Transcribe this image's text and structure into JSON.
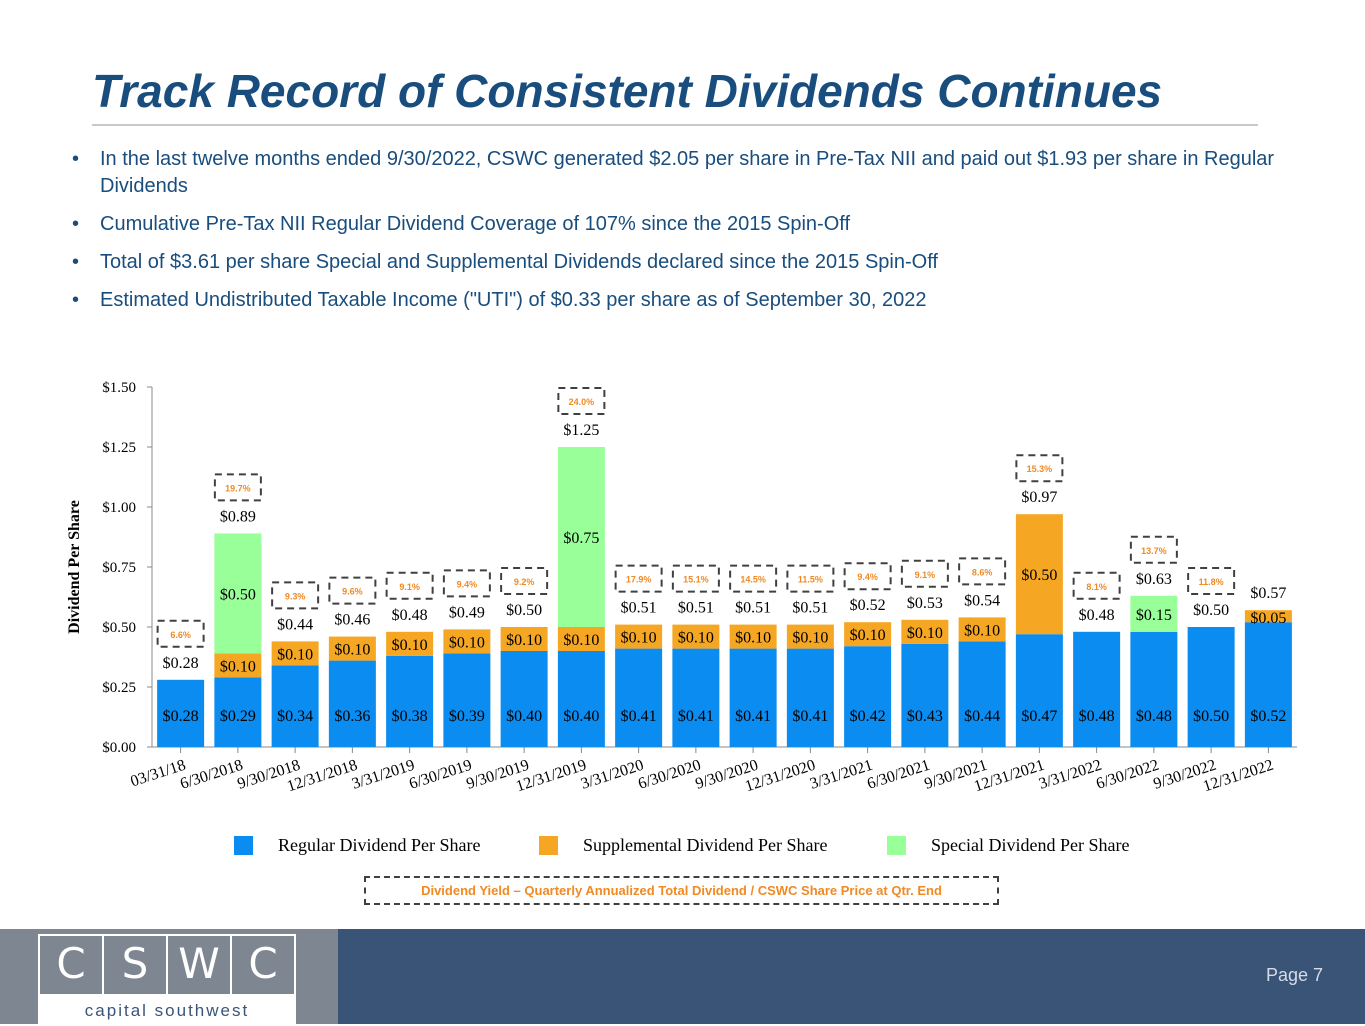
{
  "title": "Track Record of Consistent Dividends Continues",
  "bullets": [
    "In the last twelve months ended 9/30/2022, CSWC generated $2.05 per share in Pre-Tax NII and paid out $1.93 per share in Regular Dividends",
    "Cumulative Pre-Tax NII Regular Dividend Coverage of 107% since the 2015 Spin-Off",
    "Total of $3.61 per share Special and Supplemental Dividends declared since the 2015 Spin-Off",
    "Estimated Undistributed Taxable Income (\"UTI\") of $0.33 per share as of September 30, 2022"
  ],
  "bullet_marker": "•",
  "legend": {
    "regular": "Regular Dividend Per Share",
    "supplemental": "Supplemental Dividend Per Share",
    "special": "Special Dividend Per Share"
  },
  "yield_note": "Dividend Yield – Quarterly Annualized Total Dividend / CSWC Share Price at Qtr. End",
  "colors": {
    "regular": "#0a8cf0",
    "supplemental": "#f5a623",
    "special": "#99ff99",
    "title": "#184d7e",
    "yield_text": "#f08a24"
  },
  "footer": {
    "logo_letters": [
      "C",
      "S",
      "W",
      "C"
    ],
    "logo_subtitle": "capital southwest",
    "page": "Page 7"
  },
  "chart_data": {
    "type": "bar",
    "stacked": true,
    "ylabel": "Dividend Per Share",
    "xlabel": "",
    "ylim": [
      0,
      1.5
    ],
    "yticks": [
      "$0.00",
      "$0.25",
      "$0.50",
      "$0.75",
      "$1.00",
      "$1.25",
      "$1.50"
    ],
    "categories": [
      "03/31/18",
      "6/30/2018",
      "9/30/2018",
      "12/31/2018",
      "3/31/2019",
      "6/30/2019",
      "9/30/2019",
      "12/31/2019",
      "3/31/2020",
      "6/30/2020",
      "9/30/2020",
      "12/31/2020",
      "3/31/2021",
      "6/30/2021",
      "9/30/2021",
      "12/31/2021",
      "3/31/2022",
      "6/30/2022",
      "9/30/2022",
      "12/31/2022"
    ],
    "series": [
      {
        "name": "Regular Dividend Per Share",
        "key": "regular",
        "values": [
          0.28,
          0.29,
          0.34,
          0.36,
          0.38,
          0.39,
          0.4,
          0.4,
          0.41,
          0.41,
          0.41,
          0.41,
          0.42,
          0.43,
          0.44,
          0.47,
          0.48,
          0.48,
          0.5,
          0.52
        ]
      },
      {
        "name": "Supplemental Dividend Per Share",
        "key": "supplemental",
        "values": [
          0,
          0.1,
          0.1,
          0.1,
          0.1,
          0.1,
          0.1,
          0.1,
          0.1,
          0.1,
          0.1,
          0.1,
          0.1,
          0.1,
          0.1,
          0.5,
          0,
          0,
          0,
          0.05
        ]
      },
      {
        "name": "Special Dividend Per Share",
        "key": "special",
        "values": [
          0,
          0.5,
          0,
          0,
          0,
          0,
          0,
          0.75,
          0,
          0,
          0,
          0,
          0,
          0,
          0,
          0,
          0,
          0.15,
          0,
          0
        ]
      }
    ],
    "segment_labels": {
      "regular": [
        "$0.28",
        "$0.29",
        "$0.34",
        "$0.36",
        "$0.38",
        "$0.39",
        "$0.40",
        "$0.40",
        "$0.41",
        "$0.41",
        "$0.41",
        "$0.41",
        "$0.42",
        "$0.43",
        "$0.44",
        "$0.47",
        "$0.48",
        "$0.48",
        "$0.50",
        "$0.52"
      ],
      "supplemental": [
        "",
        "$0.10",
        "$0.10",
        "$0.10",
        "$0.10",
        "$0.10",
        "$0.10",
        "$0.10",
        "$0.10",
        "$0.10",
        "$0.10",
        "$0.10",
        "$0.10",
        "$0.10",
        "$0.10",
        "$0.50",
        "",
        "",
        "",
        "$0.05"
      ],
      "special": [
        "",
        "$0.50",
        "",
        "",
        "",
        "",
        "",
        "$0.75",
        "",
        "",
        "",
        "",
        "",
        "",
        "",
        "",
        "",
        "$0.15",
        "",
        ""
      ]
    },
    "totals": [
      0.28,
      0.89,
      0.44,
      0.46,
      0.48,
      0.49,
      0.5,
      1.25,
      0.51,
      0.51,
      0.51,
      0.51,
      0.52,
      0.53,
      0.54,
      0.97,
      0.48,
      0.63,
      0.5,
      0.57
    ],
    "total_labels": [
      "$0.28",
      "$0.89",
      "$0.44",
      "$0.46",
      "$0.48",
      "$0.49",
      "$0.50",
      "$1.25",
      "$0.51",
      "$0.51",
      "$0.51",
      "$0.51",
      "$0.52",
      "$0.53",
      "$0.54",
      "$0.97",
      "$0.48",
      "$0.63",
      "$0.50",
      "$0.57"
    ],
    "yields": [
      "6.6%",
      "19.7%",
      "9.3%",
      "9.6%",
      "9.1%",
      "9.4%",
      "9.2%",
      "24.0%",
      "17.9%",
      "15.1%",
      "14.5%",
      "11.5%",
      "9.4%",
      "9.1%",
      "8.6%",
      "15.3%",
      "8.1%",
      "13.7%",
      "11.8%",
      ""
    ]
  }
}
